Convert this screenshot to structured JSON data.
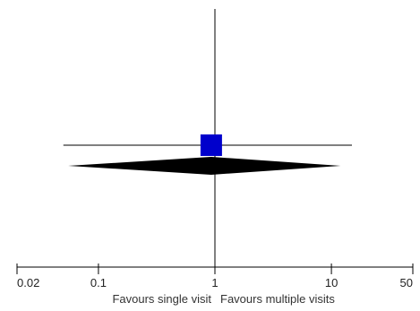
{
  "chart_data": {
    "type": "forest",
    "x_scale": "log",
    "xlim": [
      0.02,
      50
    ],
    "ticks": [
      {
        "value": 0.02,
        "label": "0.02"
      },
      {
        "value": 0.1,
        "label": "0.1"
      },
      {
        "value": 1,
        "label": "1"
      },
      {
        "value": 10,
        "label": "10"
      },
      {
        "value": 50,
        "label": "50"
      }
    ],
    "null_line": 1,
    "favours_left": "Favours single visit",
    "favours_right": "Favours multiple visits",
    "studies": [
      {
        "estimate": 0.93,
        "ci_low": 0.05,
        "ci_high": 15,
        "color": "#0000cc"
      }
    ],
    "pooled": {
      "estimate": 0.93,
      "ci_low": 0.055,
      "ci_high": 12,
      "color": "#000000"
    }
  }
}
